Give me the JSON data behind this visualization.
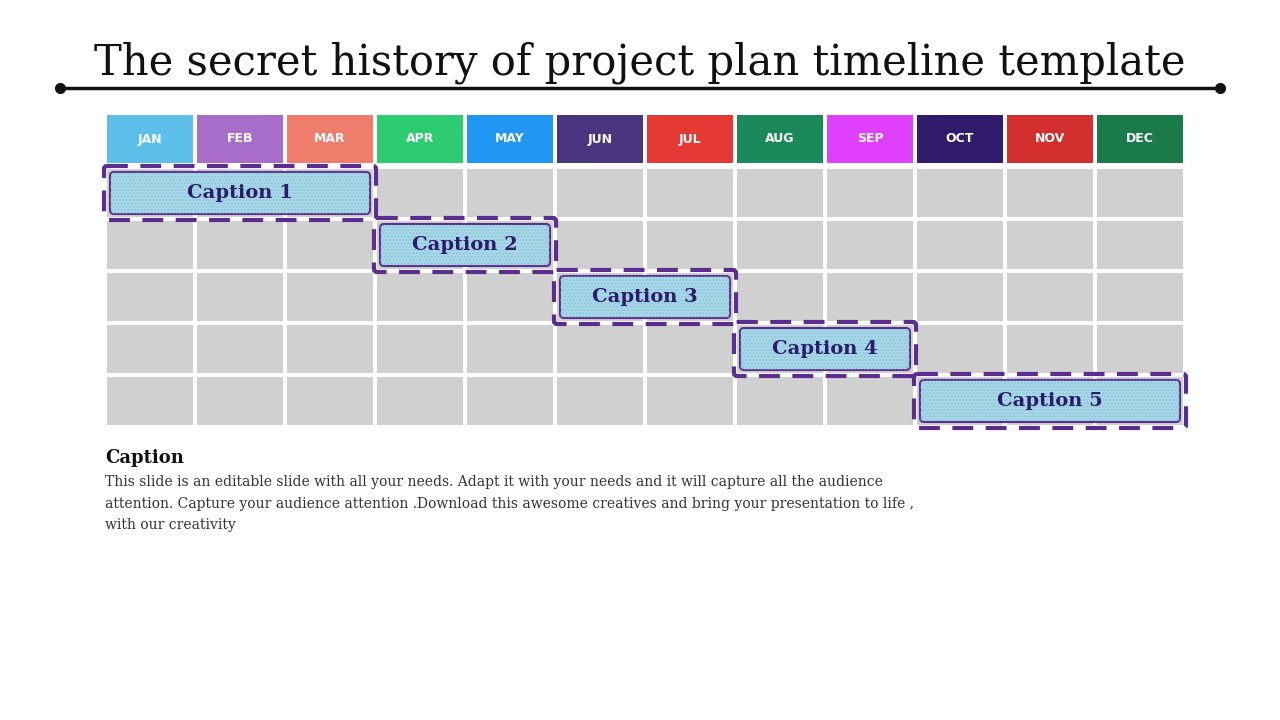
{
  "title": "The secret history of project plan timeline template",
  "months": [
    "JAN",
    "FEB",
    "MAR",
    "APR",
    "MAY",
    "JUN",
    "JUL",
    "AUG",
    "SEP",
    "OCT",
    "NOV",
    "DEC"
  ],
  "month_colors": [
    "#5BBFEA",
    "#A86DC8",
    "#F07C6C",
    "#2ECC71",
    "#2196F3",
    "#4A3580",
    "#E53935",
    "#1B8A5A",
    "#E040FB",
    "#311B6B",
    "#D32F2F",
    "#1B7A4A"
  ],
  "captions": [
    {
      "label": "Caption 1",
      "start": 0,
      "end": 3,
      "row": 0
    },
    {
      "label": "Caption 2",
      "start": 3,
      "end": 5,
      "row": 1
    },
    {
      "label": "Caption 3",
      "start": 5,
      "end": 7,
      "row": 2
    },
    {
      "label": "Caption 4",
      "start": 7,
      "end": 9,
      "row": 3
    },
    {
      "label": "Caption 5",
      "start": 9,
      "end": 12,
      "row": 4
    }
  ],
  "caption_fill": "#A8D8EA",
  "caption_border": "#5B2D8E",
  "n_rows": 5,
  "n_cols": 12,
  "grid_bg": "#D0D0D0",
  "bg_color": "#FFFFFF",
  "footer_title": "Caption",
  "footer_text": "This slide is an editable slide with all your needs. Adapt it with your needs and it will capture all the audience\nattention. Capture your audience attention .Download this awesome creatives and bring your presentation to life ,\nwith our creativity",
  "title_fontsize": 30,
  "month_fontsize": 9,
  "caption_fontsize": 14,
  "footer_title_fontsize": 13,
  "footer_text_fontsize": 10
}
